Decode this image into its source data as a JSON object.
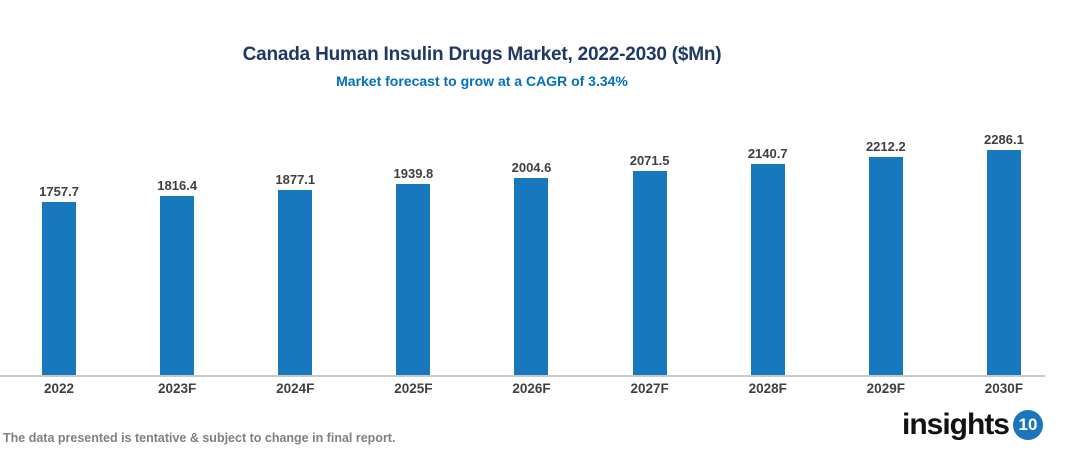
{
  "header": {
    "title": "Canada Human Insulin Drugs Market, 2022-2030 ($Mn)",
    "subtitle": "Market forecast to grow at a CAGR of 3.34%"
  },
  "chart_data": {
    "type": "bar",
    "categories": [
      "2022",
      "2023F",
      "2024F",
      "2025F",
      "2026F",
      "2027F",
      "2028F",
      "2029F",
      "2030F"
    ],
    "values": [
      1757.7,
      1816.4,
      1877.1,
      1939.8,
      2004.6,
      2071.5,
      2140.7,
      2212.2,
      2286.1
    ],
    "title": "Canada Human Insulin Drugs Market, 2022-2030 ($Mn)",
    "subtitle": "Market forecast to grow at a CAGR of 3.34%",
    "xlabel": "",
    "ylabel": "",
    "ylim": [
      0,
      2500
    ],
    "grid": false,
    "legend": "none",
    "value_labels": true
  },
  "footer": {
    "disclaimer": "The data presented is tentative & subject to change in final report.",
    "logo_text": "insights",
    "logo_badge": "10"
  },
  "colors": {
    "title": "#1F3864",
    "subtitle": "#0070C0",
    "bar": "#1778BE",
    "value_label": "#404040",
    "axis_line": "#C9C9C9",
    "x_label": "#404040",
    "disclaimer": "#808080",
    "logo_badge_bg": "#1B75BC"
  }
}
